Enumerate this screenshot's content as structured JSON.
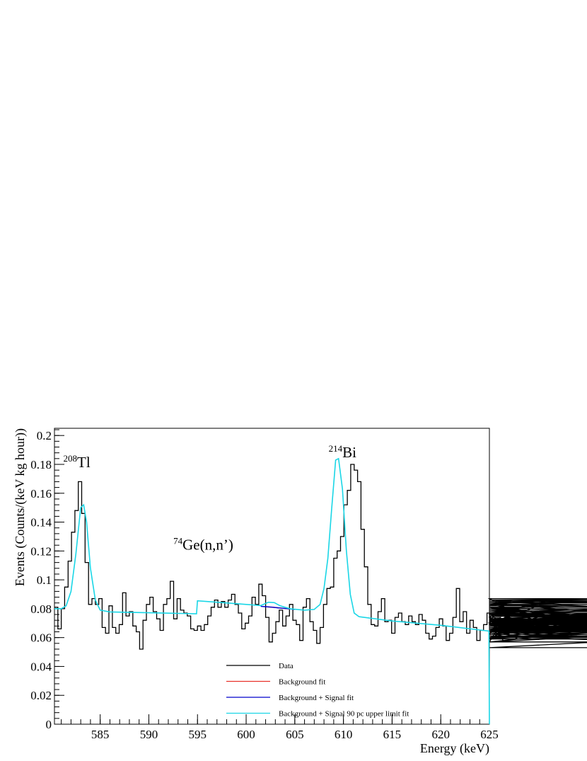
{
  "chart_data": {
    "type": "line",
    "xlabel": "Energy (keV)",
    "ylabel": "Events (Counts/(keV kg hour))",
    "xlim": [
      580.3,
      625
    ],
    "ylim": [
      0,
      0.205
    ],
    "x_ticks": [
      585,
      590,
      595,
      600,
      605,
      610,
      615,
      620,
      625
    ],
    "y_ticks": [
      0,
      0.02,
      0.04,
      0.06,
      0.08,
      0.1,
      0.12,
      0.14,
      0.16,
      0.18,
      0.2
    ],
    "x_tick_labels": [
      "585",
      "590",
      "595",
      "600",
      "605",
      "610",
      "615",
      "620",
      "625"
    ],
    "y_tick_labels": [
      "0",
      "0.02",
      "0.04",
      "0.06",
      "0.08",
      "0.1",
      "0.12",
      "0.14",
      "0.16",
      "0.18",
      "0.2"
    ],
    "bin_width": 0.35,
    "legend": [
      {
        "label": "Data",
        "color": "#000000"
      },
      {
        "label": "Background fit",
        "color": "#e8322b"
      },
      {
        "label": "Background + Signal fit",
        "color": "#0000cc"
      },
      {
        "label": "Background + Signal 90 pc upper limit fit",
        "color": "#1ad6e6"
      }
    ],
    "annotations": [
      {
        "sup": "208",
        "text": "Tl",
        "x": 582.6,
        "y": 0.178
      },
      {
        "sup": "74",
        "text": "Ge(n,n’)",
        "x": 595.6,
        "y": 0.121
      },
      {
        "sup": "214",
        "text": "Bi",
        "x": 609.9,
        "y": 0.185
      }
    ],
    "series": [
      {
        "name": "Data",
        "type": "histogram",
        "color": "#000000",
        "x_start": 580.3,
        "values": [
          0.081,
          0.066,
          0.08,
          0.095,
          0.113,
          0.133,
          0.148,
          0.168,
          0.146,
          0.112,
          0.083,
          0.087,
          0.083,
          0.087,
          0.067,
          0.063,
          0.082,
          0.067,
          0.063,
          0.069,
          0.091,
          0.075,
          0.078,
          0.068,
          0.064,
          0.052,
          0.072,
          0.083,
          0.088,
          0.078,
          0.073,
          0.065,
          0.083,
          0.087,
          0.099,
          0.073,
          0.087,
          0.079,
          0.077,
          0.075,
          0.066,
          0.065,
          0.068,
          0.065,
          0.069,
          0.075,
          0.081,
          0.086,
          0.081,
          0.085,
          0.081,
          0.086,
          0.09,
          0.083,
          0.077,
          0.066,
          0.07,
          0.075,
          0.088,
          0.083,
          0.097,
          0.089,
          0.074,
          0.057,
          0.063,
          0.071,
          0.079,
          0.068,
          0.075,
          0.083,
          0.072,
          0.069,
          0.058,
          0.081,
          0.087,
          0.071,
          0.065,
          0.056,
          0.067,
          0.083,
          0.094,
          0.095,
          0.115,
          0.12,
          0.13,
          0.152,
          0.162,
          0.18,
          0.176,
          0.168,
          0.135,
          0.109,
          0.083,
          0.069,
          0.068,
          0.078,
          0.087,
          0.071,
          0.072,
          0.063,
          0.074,
          0.077,
          0.071,
          0.069,
          0.075,
          0.071,
          0.069,
          0.076,
          0.072,
          0.063,
          0.059,
          0.061,
          0.067,
          0.073,
          0.068,
          0.058,
          0.063,
          0.074,
          0.094,
          0.071,
          0.078,
          0.063,
          0.072,
          0.067,
          0.058,
          0.065,
          0.069,
          0.077,
          0.069,
          0.076,
          0.062,
          0.074,
          0.057,
          0.077,
          0.064,
          0.07,
          0.059,
          0.071,
          0.077,
          0.071,
          0.066,
          0.069,
          0.082,
          0.087,
          0.065,
          0.076,
          0.086,
          0.083,
          0.086,
          0.083,
          0.081,
          0.066,
          0.06,
          0.073,
          0.072,
          0.066,
          0.068,
          0.077,
          0.071,
          0.069,
          0.059,
          0.073,
          0.076,
          0.073,
          0.071,
          0.065,
          0.069,
          0.077,
          0.073,
          0.069,
          0.066,
          0.07,
          0.062,
          0.071,
          0.073,
          0.068,
          0.071,
          0.066,
          0.059,
          0.067,
          0.068,
          0.083,
          0.06,
          0.064,
          0.076,
          0.081,
          0.067,
          0.064,
          0.081,
          0.059,
          0.079,
          0.065,
          0.067,
          0.065,
          0.08,
          0.069,
          0.072,
          0.066,
          0.064,
          0.085,
          0.077,
          0.065,
          0.057,
          0.075,
          0.084,
          0.068,
          0.063,
          0.073,
          0.067,
          0.072,
          0.086,
          0.083,
          0.079,
          0.072,
          0.077,
          0.067,
          0.068,
          0.073,
          0.071,
          0.066,
          0.068,
          0.075,
          0.069,
          0.061,
          0.053,
          0.065,
          0.075,
          0.071,
          0.086,
          0.083,
          0.078,
          0.065,
          0.06,
          0.063,
          0.071,
          0.066,
          0.057,
          0.07,
          0.066,
          0.059,
          0.081,
          0.072,
          0.069,
          0.077,
          0.087,
          0.084,
          0.086,
          0.083
        ]
      },
      {
        "name": "Background fit",
        "color": "#e8322b",
        "points": [
          [
            602.2,
            0.0812
          ],
          [
            603.0,
            0.0808
          ],
          [
            603.8,
            0.0803
          ],
          [
            604.5,
            0.0798
          ]
        ]
      },
      {
        "name": "Background + Signal fit",
        "color": "#0000cc",
        "points": [
          [
            601.5,
            0.0816
          ],
          [
            602.0,
            0.0814
          ],
          [
            602.6,
            0.0811
          ],
          [
            603.2,
            0.0807
          ],
          [
            603.8,
            0.0803
          ],
          [
            604.4,
            0.0799
          ],
          [
            605.0,
            0.0794
          ]
        ]
      },
      {
        "name": "Background + Signal 90 pc upper limit fit",
        "color": "#1ad6e6",
        "points": [
          [
            580.3,
            0.08
          ],
          [
            581.0,
            0.08
          ],
          [
            581.5,
            0.082
          ],
          [
            582.0,
            0.092
          ],
          [
            582.5,
            0.118
          ],
          [
            583.0,
            0.15
          ],
          [
            583.3,
            0.152
          ],
          [
            583.6,
            0.14
          ],
          [
            584.0,
            0.108
          ],
          [
            584.5,
            0.086
          ],
          [
            585.0,
            0.079
          ],
          [
            586.0,
            0.0778
          ],
          [
            590.0,
            0.0772
          ],
          [
            594.9,
            0.0765
          ],
          [
            595.0,
            0.0855
          ],
          [
            597.0,
            0.0845
          ],
          [
            600.0,
            0.083
          ],
          [
            601.5,
            0.0822
          ],
          [
            602.3,
            0.0845
          ],
          [
            602.9,
            0.0842
          ],
          [
            603.5,
            0.082
          ],
          [
            604.5,
            0.08
          ],
          [
            606.0,
            0.079
          ],
          [
            607.0,
            0.0795
          ],
          [
            607.6,
            0.083
          ],
          [
            608.0,
            0.094
          ],
          [
            608.4,
            0.115
          ],
          [
            608.8,
            0.15
          ],
          [
            609.2,
            0.183
          ],
          [
            609.5,
            0.184
          ],
          [
            609.9,
            0.163
          ],
          [
            610.3,
            0.12
          ],
          [
            610.7,
            0.09
          ],
          [
            611.1,
            0.077
          ],
          [
            611.6,
            0.0745
          ],
          [
            615.0,
            0.0715
          ],
          [
            620.0,
            0.0685
          ],
          [
            624.95,
            0.0645
          ],
          [
            625.0,
            0.0
          ]
        ]
      }
    ]
  }
}
